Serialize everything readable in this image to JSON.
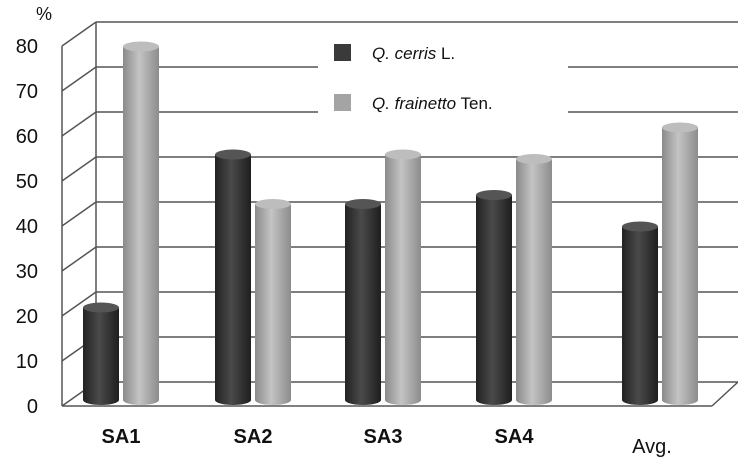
{
  "chart_data": {
    "type": "bar",
    "style": "3d-cylinder",
    "y_unit_label": "%",
    "categories": [
      "SA1",
      "SA2",
      "SA3",
      "SA4",
      "Avg."
    ],
    "series": [
      {
        "name_italic": "Q. cerris",
        "name_suffix": " L.",
        "color": "#3a3a3a",
        "values": [
          21,
          55,
          44,
          46,
          39
        ]
      },
      {
        "name_italic": "Q. frainetto",
        "name_suffix": " Ten.",
        "color": "#a4a4a4",
        "values": [
          79,
          44,
          55,
          54,
          61
        ]
      }
    ],
    "ylim": [
      0,
      80
    ],
    "yticks": [
      "0",
      "10",
      "20",
      "30",
      "40",
      "50",
      "60",
      "70",
      "80"
    ],
    "grid": true,
    "legend_position": "top-center"
  }
}
